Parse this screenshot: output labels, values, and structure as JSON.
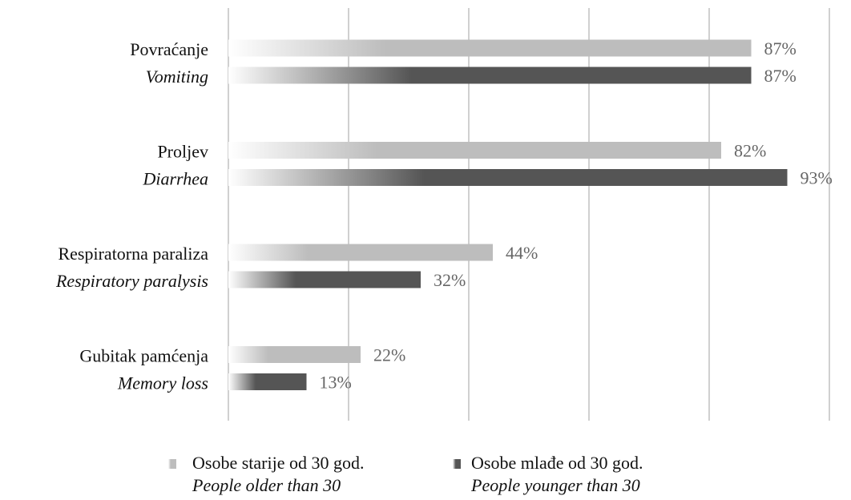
{
  "chart_data": {
    "type": "bar",
    "orientation": "horizontal",
    "categories": [
      "Povraćanje",
      "Proljev",
      "Respiratorna paraliza",
      "Gubitak pamćenja"
    ],
    "category_translations": [
      "Vomiting",
      "Diarrhea",
      "Respiratory paralysis",
      "Memory loss"
    ],
    "series": [
      {
        "name": "Osobe starije od 30 god.",
        "name_translation": "People older than 30",
        "color": "#bdbdbd",
        "values": [
          87,
          82,
          44,
          22
        ],
        "value_labels": [
          "87%",
          "82%",
          "44%",
          "22%"
        ]
      },
      {
        "name": "Osobe mlađe od 30 god.",
        "name_translation": "People younger than 30",
        "color": "#555555",
        "values": [
          87,
          93,
          32,
          13
        ],
        "value_labels": [
          "87%",
          "93%",
          "32%",
          "13%"
        ]
      }
    ],
    "xlim": [
      0,
      100
    ],
    "xticks": [
      0,
      20,
      40,
      60,
      80,
      100
    ],
    "grid": true
  }
}
